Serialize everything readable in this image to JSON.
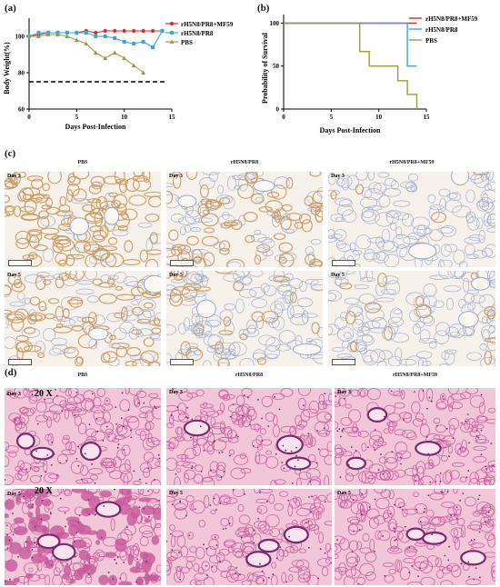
{
  "labels": {
    "a": "(a)",
    "b": "(b)",
    "c": "(c)",
    "d": "(d)"
  },
  "colors": {
    "mf59": "#d7292b",
    "pr8": "#3aa7d8",
    "pbs": "#a39a3e",
    "ihc_bg": "#f6f1ea",
    "ihc_stain": "#c9965a",
    "ihc_blue": "#9aa8cc",
    "he_bg": "#f1c6d8",
    "he_tissue": "#c85a9c",
    "he_dark": "#7a2a6e"
  },
  "chart_data": [
    {
      "type": "line",
      "panel": "(a)",
      "xlabel": "Days Post-Infection",
      "ylabel": "Body Weight(%)",
      "xlim": [
        0,
        15
      ],
      "ylim": [
        60,
        110
      ],
      "xticks": [
        "0",
        "5",
        "10",
        "15"
      ],
      "yticks": [
        "60",
        "80",
        "100"
      ],
      "reference_line": {
        "y": 75,
        "style": "dashed"
      },
      "legend": [
        "rH5N8/PR8+MF59",
        "rH5N8/PR8",
        "PBS"
      ],
      "series": [
        {
          "name": "rH5N8/PR8+MF59",
          "color": "#d7292b",
          "marker": "circle",
          "x": [
            0,
            1,
            2,
            3,
            4,
            5,
            6,
            7,
            8,
            9,
            10,
            11,
            12,
            13,
            14
          ],
          "y": [
            100,
            101,
            102,
            102,
            102,
            102,
            103,
            102,
            103,
            103,
            103,
            103,
            103,
            103,
            103
          ]
        },
        {
          "name": "rH5N8/PR8",
          "color": "#3aa7d8",
          "marker": "square",
          "x": [
            0,
            1,
            2,
            3,
            4,
            5,
            6,
            7,
            8,
            9,
            10,
            11,
            12,
            13,
            14
          ],
          "y": [
            100,
            102,
            102,
            102,
            102,
            102,
            102,
            100,
            100,
            99,
            97,
            96,
            97,
            94,
            103
          ]
        },
        {
          "name": "PBS",
          "color": "#a39a3e",
          "marker": "triangle",
          "x": [
            0,
            1,
            2,
            3,
            4,
            5,
            6,
            7,
            8,
            9,
            10,
            11,
            12
          ],
          "y": [
            100,
            100,
            101,
            101,
            100,
            98,
            96,
            91,
            88,
            91,
            88,
            84,
            80
          ]
        }
      ]
    },
    {
      "type": "line",
      "panel": "(b)",
      "xlabel": "Days Post-Infection",
      "ylabel": "Probability of Survival",
      "xlim": [
        0,
        15
      ],
      "ylim": [
        0,
        110
      ],
      "xticks": [
        "0",
        "5",
        "10",
        "15"
      ],
      "yticks": [
        "0",
        "50",
        "100"
      ],
      "legend": [
        "rH5N8/PR8+MF59",
        "rH5N8/PR8",
        "PBS"
      ],
      "series": [
        {
          "name": "rH5N8/PR8+MF59",
          "color": "#d7292b",
          "step": true,
          "x": [
            0,
            14
          ],
          "y": [
            100,
            100
          ]
        },
        {
          "name": "rH5N8/PR8",
          "color": "#3aa7d8",
          "step": true,
          "x": [
            0,
            13,
            13,
            14
          ],
          "y": [
            100,
            100,
            50,
            50
          ]
        },
        {
          "name": "PBS",
          "color": "#a39a3e",
          "step": true,
          "x": [
            0,
            8,
            8,
            9,
            9,
            12,
            12,
            13,
            13,
            14,
            14
          ],
          "y": [
            100,
            100,
            67,
            67,
            50,
            50,
            33,
            33,
            17,
            17,
            0
          ]
        }
      ]
    }
  ],
  "panel_c": {
    "columns": [
      "PBS",
      "rH5N8/PR8",
      "rH5N8/PR8+MF59"
    ],
    "rows": [
      "Day 3",
      "Day 5"
    ],
    "stain_levels": [
      [
        0.9,
        0.45,
        0.05
      ],
      [
        0.55,
        0.15,
        0.1
      ]
    ]
  },
  "panel_d": {
    "columns": [
      "PBS",
      "rH5N8/PR8",
      "rH5N8/PR8+MF59"
    ],
    "rows": [
      "Day 3",
      "Day 5"
    ],
    "magnification": "20 X"
  }
}
